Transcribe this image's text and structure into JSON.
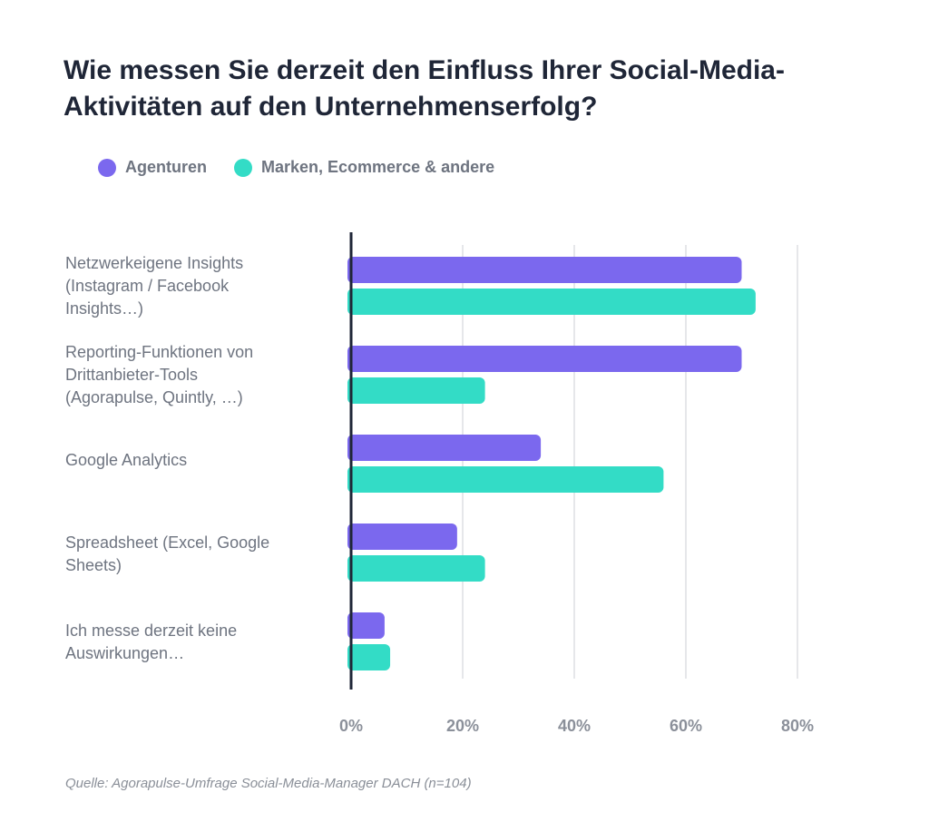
{
  "chart_data": {
    "type": "bar",
    "orientation": "horizontal",
    "title": "Wie messen Sie derzeit den Einfluss Ihrer Social-Media-Aktivitäten auf den Unternehmenserfolg?",
    "title_lines": [
      "Wie messen Sie derzeit den Einfluss Ihrer Social-Media-",
      "Aktivitäten auf den Unternehmenserfolg?"
    ],
    "categories": [
      [
        "Netzwerkeigene Insights",
        "(Instagram / Facebook",
        "Insights…)"
      ],
      [
        "Reporting-Funktionen von",
        "Drittanbieter-Tools",
        "(Agorapulse, Quintly, …)"
      ],
      [
        "Google Analytics"
      ],
      [
        "Spreadsheet (Excel, Google",
        "Sheets)"
      ],
      [
        "Ich messe derzeit keine",
        "Auswirkungen…"
      ]
    ],
    "series": [
      {
        "name": "Agenturen",
        "color": "#7b68ee",
        "values": [
          70,
          70,
          34,
          19,
          6
        ]
      },
      {
        "name": "Marken, Ecommerce & andere",
        "color": "#33dcc6",
        "values": [
          72.5,
          24,
          56,
          24,
          7
        ]
      }
    ],
    "xlim": [
      0,
      80
    ],
    "xticks": [
      "0%",
      "20%",
      "40%",
      "60%",
      "80%"
    ],
    "grid": true,
    "legend_position": "top-left"
  },
  "source": "Quelle: Agorapulse-Umfrage Social-Media-Manager DACH (n=104)"
}
